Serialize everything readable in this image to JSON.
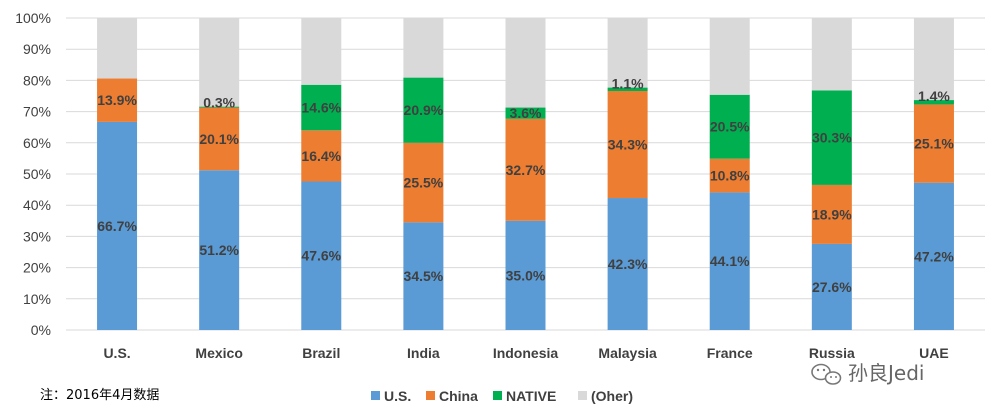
{
  "note": "注：2016年4月数据",
  "watermark": "孙良Jedi",
  "colors": {
    "us": "#5b9bd5",
    "china": "#ed7d31",
    "native": "#00b050",
    "other": "#d9d9d9",
    "grid": "#d9d9d9",
    "text": "#404040"
  },
  "chart_data": {
    "type": "bar",
    "stacked": true,
    "percent": true,
    "title": "",
    "xlabel": "",
    "ylabel": "",
    "ylim": [
      0,
      100
    ],
    "yticks": [
      "0%",
      "10%",
      "20%",
      "30%",
      "40%",
      "50%",
      "60%",
      "70%",
      "80%",
      "90%",
      "100%"
    ],
    "grid": true,
    "legend_position": "bottom",
    "categories": [
      "U.S.",
      "Mexico",
      "Brazil",
      "India",
      "Indonesia",
      "Malaysia",
      "France",
      "Russia",
      "UAE"
    ],
    "series": [
      {
        "name": "U.S.",
        "color_key": "us",
        "values": [
          66.7,
          51.2,
          47.6,
          34.5,
          35.0,
          42.3,
          44.1,
          27.6,
          47.2
        ],
        "labels": [
          "66.7%",
          "51.2%",
          "47.6%",
          "34.5%",
          "35.0%",
          "42.3%",
          "44.1%",
          "27.6%",
          "47.2%"
        ]
      },
      {
        "name": "China",
        "color_key": "china",
        "values": [
          13.9,
          20.1,
          16.4,
          25.5,
          32.7,
          34.3,
          10.8,
          18.9,
          25.1
        ],
        "labels": [
          "13.9%",
          "20.1%",
          "16.4%",
          "25.5%",
          "32.7%",
          "34.3%",
          "10.8%",
          "18.9%",
          "25.1%"
        ]
      },
      {
        "name": "NATIVE",
        "color_key": "native",
        "values": [
          0,
          0.3,
          14.6,
          20.9,
          3.6,
          1.1,
          20.5,
          30.3,
          1.4
        ],
        "labels": [
          "",
          "0.3%",
          "14.6%",
          "20.9%",
          "3.6%",
          "1.1%",
          "20.5%",
          "30.3%",
          "1.4%"
        ]
      },
      {
        "name": "(Oher)",
        "color_key": "other",
        "values": [
          19.4,
          28.4,
          21.4,
          19.1,
          28.7,
          22.3,
          24.6,
          23.2,
          26.3
        ],
        "labels": [
          "",
          "",
          "",
          "",
          "",
          "",
          "",
          "",
          ""
        ]
      }
    ]
  }
}
